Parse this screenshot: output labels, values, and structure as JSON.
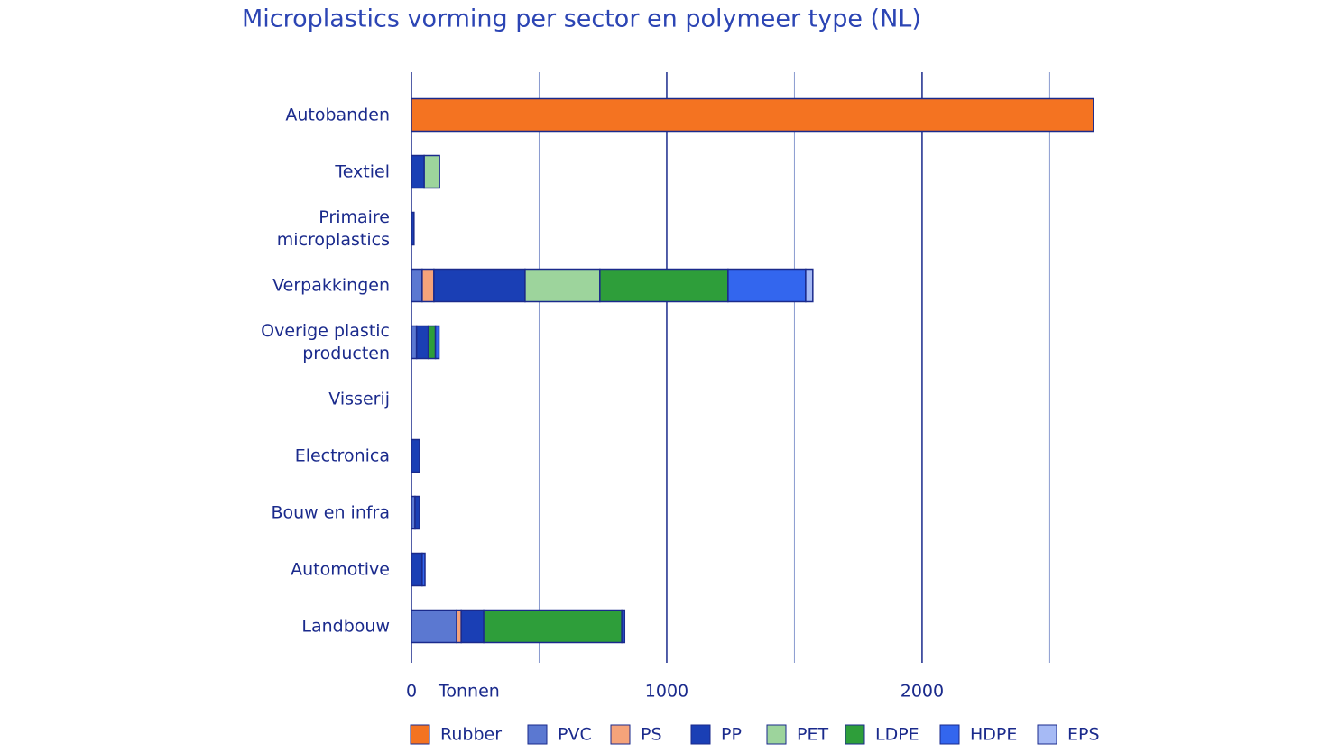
{
  "chart_data": {
    "type": "stacked-barh",
    "title": "Microplastics vorming per sector en polymeer type (NL)",
    "xlabel": "Tonnen",
    "categories": [
      "Autobanden",
      "Textiel",
      "Primaire microplastics",
      "Verpakkingen",
      "Overige plastic producten",
      "Visserij",
      "Electronica",
      "Bouw en infra",
      "Automotive",
      "Landbouw"
    ],
    "series": [
      {
        "name": "Rubber",
        "color": "#f47321",
        "values": [
          2671,
          0,
          0,
          0,
          0,
          0,
          0,
          0,
          0,
          0
        ]
      },
      {
        "name": "PVC",
        "color": "#5b78d1",
        "values": [
          0,
          0,
          0,
          42,
          20,
          0,
          0,
          14,
          0,
          177
        ]
      },
      {
        "name": "PS",
        "color": "#f5a37a",
        "values": [
          0,
          0,
          0,
          46,
          0,
          0,
          0,
          0,
          0,
          18
        ]
      },
      {
        "name": "PP",
        "color": "#1a3fb5",
        "values": [
          0,
          50,
          10,
          357,
          46,
          0,
          32,
          18,
          42,
          88
        ]
      },
      {
        "name": "PET",
        "color": "#9dd49c",
        "values": [
          0,
          60,
          0,
          293,
          0,
          0,
          0,
          0,
          0,
          0
        ]
      },
      {
        "name": "LDPE",
        "color": "#2e9e3a",
        "values": [
          0,
          0,
          0,
          502,
          28,
          0,
          0,
          0,
          0,
          541
        ]
      },
      {
        "name": "HDPE",
        "color": "#3366ee",
        "values": [
          0,
          0,
          0,
          304,
          14,
          0,
          0,
          0,
          11,
          11
        ]
      },
      {
        "name": "EPS",
        "color": "#a6baf5",
        "values": [
          0,
          0,
          0,
          28,
          0,
          0,
          0,
          0,
          0,
          0
        ]
      }
    ],
    "xlim": [
      0,
      2700
    ],
    "xticks": [
      0,
      1000,
      2000
    ],
    "xminor": [
      500,
      1500,
      2500
    ],
    "grid": true,
    "legend": "bottom"
  }
}
